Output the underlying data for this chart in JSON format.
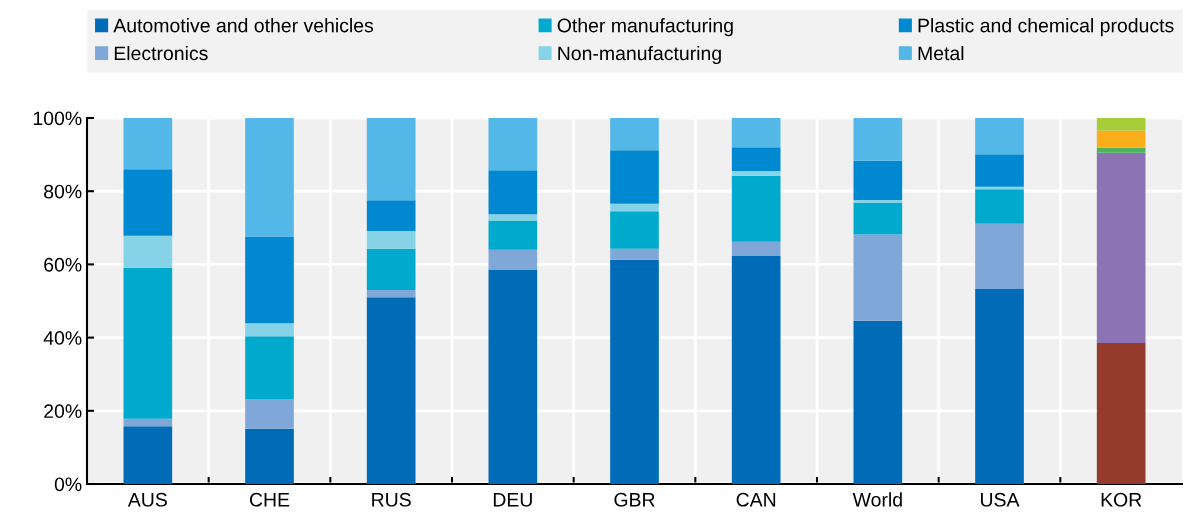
{
  "chart_data": {
    "type": "bar",
    "stacked": true,
    "legend": "top",
    "grid": true,
    "categories": [
      "AUS",
      "CHE",
      "RUS",
      "DEU",
      "GBR",
      "CAN",
      "World",
      "USA",
      "KOR"
    ],
    "ylim": [
      0,
      100
    ],
    "yticks": [
      {
        "value": 0,
        "label": "0%"
      },
      {
        "value": 20,
        "label": "20%"
      },
      {
        "value": 40,
        "label": "40%"
      },
      {
        "value": 60,
        "label": "60%"
      },
      {
        "value": 80,
        "label": "80%"
      },
      {
        "value": 100,
        "label": "100%"
      }
    ],
    "series": [
      {
        "name": "Automotive and other vehicles",
        "color": "#006bb6",
        "values": [
          15.8,
          15.1,
          51.0,
          58.6,
          61.3,
          62.3,
          44.6,
          53.3,
          null
        ]
      },
      {
        "name": "Electronics",
        "color": "#7fa8d9",
        "values": [
          2.0,
          8.1,
          2.0,
          5.4,
          3.0,
          3.9,
          23.6,
          17.8,
          null
        ]
      },
      {
        "name": "Other manufacturing",
        "color": "#00aacc",
        "values": [
          41.3,
          17.2,
          11.3,
          8.0,
          10.2,
          18.0,
          8.6,
          9.4,
          null
        ]
      },
      {
        "name": "Non-manufacturing",
        "color": "#86d2e6",
        "values": [
          8.7,
          3.5,
          4.8,
          1.7,
          2.1,
          1.3,
          0.8,
          0.7,
          null
        ]
      },
      {
        "name": "Plastic and chemical products",
        "color": "#0089d0",
        "values": [
          18.2,
          23.7,
          8.4,
          12.0,
          14.6,
          6.5,
          10.7,
          8.9,
          null
        ]
      },
      {
        "name": "Metal",
        "color": "#53b7e8",
        "values": [
          14.0,
          32.4,
          22.5,
          14.3,
          8.8,
          8.0,
          11.7,
          9.9,
          null
        ]
      },
      {
        "color": "#943b2d",
        "values": [
          null,
          null,
          null,
          null,
          null,
          null,
          null,
          null,
          38.5
        ]
      },
      {
        "color": "#8b73b4",
        "values": [
          null,
          null,
          null,
          null,
          null,
          null,
          null,
          null,
          52.0
        ]
      },
      {
        "color": "#4cb45e",
        "values": [
          null,
          null,
          null,
          null,
          null,
          null,
          null,
          null,
          1.4
        ]
      },
      {
        "color": "#fcad1a",
        "values": [
          null,
          null,
          null,
          null,
          null,
          null,
          null,
          null,
          4.7
        ]
      },
      {
        "color": "#a6ce39",
        "values": [
          null,
          null,
          null,
          null,
          null,
          null,
          null,
          null,
          3.4
        ]
      }
    ]
  }
}
